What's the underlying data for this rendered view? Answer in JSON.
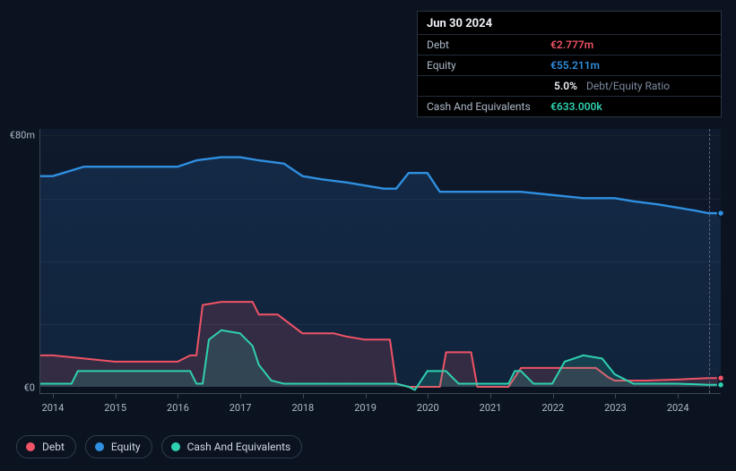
{
  "tooltip": {
    "date": "Jun 30 2024",
    "rows": [
      {
        "label": "Debt",
        "value": "€2.777m",
        "color": "#ef5366"
      },
      {
        "label": "Equity",
        "value": "€55.211m",
        "color": "#2f8fe0",
        "extra_value": "5.0%",
        "extra_suffix": "Debt/Equity Ratio"
      },
      {
        "label": "Cash And Equivalents",
        "value": "€633.000k",
        "color": "#2fd0b0"
      }
    ]
  },
  "chart": {
    "background": "#0b1320",
    "plot_bg_top": "#0f1a2e",
    "grid_color": "#1a2332",
    "axis_color": "#3b4555",
    "y": {
      "ticks": [
        0,
        80
      ],
      "labels": [
        "€0",
        "€80m"
      ],
      "min": -2,
      "max": 82
    },
    "x": {
      "min": 2013.8,
      "max": 2024.7,
      "ticks": [
        2014,
        2015,
        2016,
        2017,
        2018,
        2019,
        2020,
        2021,
        2022,
        2023,
        2024
      ],
      "labels": [
        "2014",
        "2015",
        "2016",
        "2017",
        "2018",
        "2019",
        "2020",
        "2021",
        "2022",
        "2023",
        "2024"
      ]
    },
    "cursor_x": 2024.5,
    "series": [
      {
        "name": "Equity",
        "color": "#2f8fe0",
        "fill_opacity": 0.14,
        "stroke_width": 2.4,
        "points": [
          [
            2013.8,
            67
          ],
          [
            2014.0,
            67
          ],
          [
            2014.5,
            70
          ],
          [
            2015.0,
            70
          ],
          [
            2015.5,
            70
          ],
          [
            2016.0,
            70
          ],
          [
            2016.3,
            72
          ],
          [
            2016.7,
            73
          ],
          [
            2017.0,
            73
          ],
          [
            2017.3,
            72
          ],
          [
            2017.7,
            71
          ],
          [
            2018.0,
            67
          ],
          [
            2018.3,
            66
          ],
          [
            2018.7,
            65
          ],
          [
            2019.0,
            64
          ],
          [
            2019.3,
            63
          ],
          [
            2019.5,
            63
          ],
          [
            2019.7,
            68
          ],
          [
            2020.0,
            68
          ],
          [
            2020.2,
            62
          ],
          [
            2020.5,
            62
          ],
          [
            2021.0,
            62
          ],
          [
            2021.5,
            62
          ],
          [
            2022.0,
            61
          ],
          [
            2022.5,
            60
          ],
          [
            2023.0,
            60
          ],
          [
            2023.3,
            59
          ],
          [
            2023.7,
            58
          ],
          [
            2024.0,
            57
          ],
          [
            2024.3,
            56
          ],
          [
            2024.5,
            55.2
          ],
          [
            2024.7,
            55.2
          ]
        ],
        "end_marker": true
      },
      {
        "name": "Debt",
        "color": "#ef5366",
        "fill_opacity": 0.16,
        "stroke_width": 2,
        "points": [
          [
            2013.8,
            10
          ],
          [
            2014.0,
            10
          ],
          [
            2014.5,
            9
          ],
          [
            2015.0,
            8
          ],
          [
            2015.5,
            8
          ],
          [
            2016.0,
            8
          ],
          [
            2016.2,
            10
          ],
          [
            2016.3,
            10
          ],
          [
            2016.4,
            26
          ],
          [
            2016.7,
            27
          ],
          [
            2017.0,
            27
          ],
          [
            2017.2,
            27
          ],
          [
            2017.3,
            23
          ],
          [
            2017.6,
            23
          ],
          [
            2018.0,
            17
          ],
          [
            2018.5,
            17
          ],
          [
            2018.7,
            16
          ],
          [
            2019.0,
            15
          ],
          [
            2019.3,
            15
          ],
          [
            2019.4,
            15
          ],
          [
            2019.5,
            1
          ],
          [
            2019.7,
            0
          ],
          [
            2019.8,
            0
          ],
          [
            2020.0,
            0
          ],
          [
            2020.2,
            0
          ],
          [
            2020.3,
            11
          ],
          [
            2020.7,
            11
          ],
          [
            2020.8,
            0
          ],
          [
            2021.0,
            0
          ],
          [
            2021.3,
            0
          ],
          [
            2021.5,
            6
          ],
          [
            2022.0,
            6
          ],
          [
            2022.5,
            6
          ],
          [
            2022.7,
            6
          ],
          [
            2022.9,
            3
          ],
          [
            2023.0,
            2
          ],
          [
            2023.5,
            2
          ],
          [
            2024.0,
            2.3
          ],
          [
            2024.3,
            2.6
          ],
          [
            2024.5,
            2.78
          ],
          [
            2024.7,
            2.78
          ]
        ],
        "end_marker": true
      },
      {
        "name": "Cash And Equivalents",
        "color": "#2fd0b0",
        "fill_opacity": 0.16,
        "stroke_width": 2,
        "points": [
          [
            2013.8,
            1
          ],
          [
            2014.0,
            1
          ],
          [
            2014.3,
            1
          ],
          [
            2014.4,
            5
          ],
          [
            2015.0,
            5
          ],
          [
            2015.5,
            5
          ],
          [
            2016.0,
            5
          ],
          [
            2016.2,
            5
          ],
          [
            2016.3,
            1
          ],
          [
            2016.4,
            1
          ],
          [
            2016.5,
            15
          ],
          [
            2016.7,
            18
          ],
          [
            2017.0,
            17
          ],
          [
            2017.2,
            13
          ],
          [
            2017.3,
            7
          ],
          [
            2017.5,
            2
          ],
          [
            2017.7,
            1
          ],
          [
            2018.0,
            1
          ],
          [
            2018.5,
            1
          ],
          [
            2019.0,
            1
          ],
          [
            2019.3,
            1
          ],
          [
            2019.5,
            1
          ],
          [
            2019.7,
            0
          ],
          [
            2019.8,
            -1
          ],
          [
            2020.0,
            5
          ],
          [
            2020.3,
            5
          ],
          [
            2020.5,
            1
          ],
          [
            2021.0,
            1
          ],
          [
            2021.3,
            1
          ],
          [
            2021.4,
            5
          ],
          [
            2021.5,
            5
          ],
          [
            2021.7,
            1
          ],
          [
            2022.0,
            1
          ],
          [
            2022.2,
            8
          ],
          [
            2022.5,
            10
          ],
          [
            2022.8,
            9
          ],
          [
            2023.0,
            4
          ],
          [
            2023.3,
            1
          ],
          [
            2023.7,
            1
          ],
          [
            2024.0,
            1
          ],
          [
            2024.3,
            0.8
          ],
          [
            2024.5,
            0.63
          ],
          [
            2024.7,
            0.63
          ]
        ],
        "end_marker": true
      }
    ]
  },
  "legend": [
    {
      "label": "Debt",
      "color": "#ef5366"
    },
    {
      "label": "Equity",
      "color": "#2f8fe0"
    },
    {
      "label": "Cash And Equivalents",
      "color": "#2fd0b0"
    }
  ]
}
